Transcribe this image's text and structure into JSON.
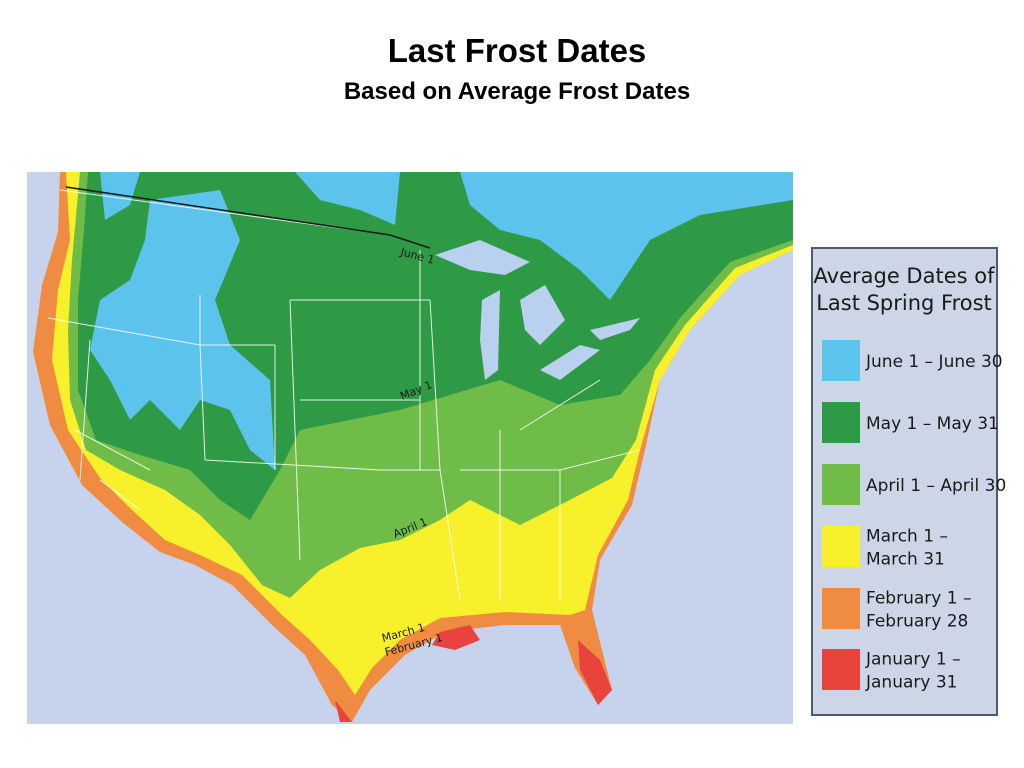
{
  "title": "Last Frost Dates",
  "subtitle": "Based on Average Frost Dates",
  "map": {
    "labels": [
      "June 1",
      "May 1",
      "April 1",
      "March 1",
      "February 1"
    ]
  },
  "legend": {
    "title_lines": [
      "Average Dates of",
      "Last Spring Frost"
    ],
    "items": [
      {
        "label_lines": [
          "June 1 – June 30"
        ],
        "color": "#5cc3ec"
      },
      {
        "label_lines": [
          "May 1 – May 31"
        ],
        "color": "#2f9a45"
      },
      {
        "label_lines": [
          "April 1 – April 30"
        ],
        "color": "#6fbd48"
      },
      {
        "label_lines": [
          "March 1 –",
          "March 31"
        ],
        "color": "#f7f02a"
      },
      {
        "label_lines": [
          "February 1 –",
          "February 28"
        ],
        "color": "#f08c42"
      },
      {
        "label_lines": [
          "January 1 –",
          "January 31"
        ],
        "color": "#e8433d"
      }
    ]
  }
}
